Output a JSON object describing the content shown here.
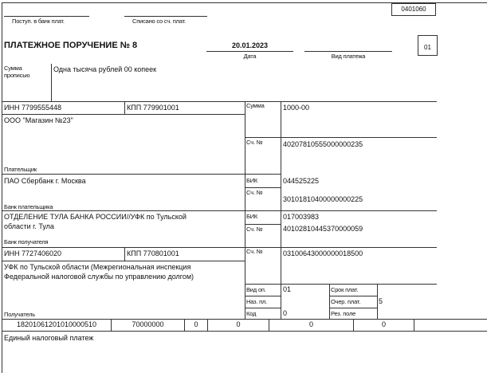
{
  "form_code": "0401060",
  "header": {
    "received_label": "Поступ. в банк плат.",
    "debited_label": "Списано со сч. плат.",
    "title": "ПЛАТЕЖНОЕ ПОРУЧЕНИЕ № 8",
    "date": "20.01.2023",
    "date_label": "Дата",
    "payment_type_label": "Вид платежа",
    "status_code": "01"
  },
  "amount_words": {
    "label": "Сумма прописью",
    "value": "Одна тысяча рублей 00 копеек"
  },
  "payer": {
    "inn": "ИНН 7799555448",
    "kpp": "КПП 779901001",
    "name": "ООО \"Магазин №23\"",
    "label": "Плательщик",
    "sum_label": "Сумма",
    "sum": "1000-00",
    "account_label": "Сч. №",
    "account": "40207810555000000235"
  },
  "payer_bank": {
    "name": "ПАО Сбербанк г. Москва",
    "label": "Банк плательщика",
    "bik_label": "БИК",
    "bik": "044525225",
    "account_label": "Сч. №",
    "account": "30101810400000000225"
  },
  "recipient_bank": {
    "name_line1": "ОТДЕЛЕНИЕ ТУЛА БАНКА РОССИИ//УФК по Тульской",
    "name_line2": "области г. Тула",
    "label": "Банк получателя",
    "bik_label": "БИК",
    "bik": "017003983",
    "account_label": "Сч. №",
    "account": "40102810445370000059"
  },
  "recipient": {
    "inn": "ИНН 7727406020",
    "kpp": "КПП 770801001",
    "name_line1": "УФК по Тульской области (Межрегиональная инспекция",
    "name_line2": "Федеральной налоговой службы по управлению долгом)",
    "label": "Получатель",
    "account_label": "Сч. №",
    "account": "03100643000000018500",
    "op_type_label": "Вид оп.",
    "op_type": "01",
    "purpose_label": "Наз. пл.",
    "code_label": "Код",
    "code": "0",
    "due_label": "Срок плат.",
    "priority_label": "Очер. плат.",
    "priority": "5",
    "reserve_label": "Рез. поле"
  },
  "tax_row": [
    "18201061201010000510",
    "70000000",
    "0",
    "0",
    "0",
    "0"
  ],
  "payment_purpose": "Единый налоговый платеж"
}
